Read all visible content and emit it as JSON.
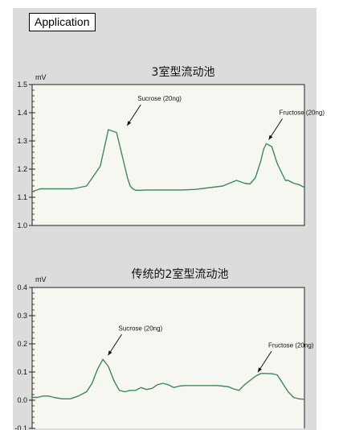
{
  "header": {
    "label": "Application"
  },
  "chart_data": [
    {
      "type": "line",
      "title": "3室型流动池",
      "ylabel": "mV",
      "ylim": [
        1.0,
        1.5
      ],
      "yticks": [
        "1.0",
        "1.1",
        "1.2",
        "1.3",
        "1.4",
        "1.5"
      ],
      "xlim": [
        0,
        100
      ],
      "grid": false,
      "series": [
        {
          "color": "#3a8a5a",
          "x": [
            0,
            3,
            8,
            15,
            20,
            25,
            28,
            31,
            33,
            35,
            36,
            37,
            38,
            40,
            42,
            44,
            47,
            50,
            55,
            60,
            70,
            75,
            78,
            80,
            82,
            84,
            85,
            86,
            88,
            90,
            93,
            94,
            95,
            96,
            98,
            100
          ],
          "y": [
            1.12,
            1.13,
            1.13,
            1.13,
            1.14,
            1.21,
            1.34,
            1.33,
            1.25,
            1.17,
            1.14,
            1.13,
            1.125,
            1.125,
            1.126,
            1.126,
            1.126,
            1.126,
            1.126,
            1.128,
            1.14,
            1.16,
            1.15,
            1.147,
            1.17,
            1.23,
            1.27,
            1.29,
            1.28,
            1.22,
            1.16,
            1.16,
            1.155,
            1.15,
            1.145,
            1.135
          ]
        }
      ],
      "annotations": [
        {
          "text": "Sucrose (20ng)",
          "x": 34,
          "y": 1.34
        },
        {
          "text": "Fructose (20ng)",
          "x": 86,
          "y": 1.29
        }
      ]
    },
    {
      "type": "line",
      "title": "传统的2室型流动池",
      "ylabel": "mV",
      "ylim": [
        -0.1,
        0.4
      ],
      "yticks": [
        "-0.1",
        "0.0",
        "0.1",
        "0.2",
        "0.3",
        "0.4"
      ],
      "xlim": [
        0,
        100
      ],
      "grid": false,
      "series": [
        {
          "color": "#3a8a5a",
          "x": [
            0,
            2,
            4,
            6,
            8,
            11,
            14,
            17,
            20,
            22,
            24,
            26,
            28,
            30,
            32,
            34,
            36,
            38,
            40,
            42,
            44,
            46,
            48,
            50,
            52,
            54,
            56,
            58,
            60,
            62,
            64,
            66,
            68,
            70,
            72,
            74,
            76,
            78,
            80,
            82,
            84,
            86,
            88,
            90,
            92,
            94,
            96,
            98,
            100
          ],
          "y": [
            0.01,
            0.01,
            0.015,
            0.015,
            0.01,
            0.005,
            0.005,
            0.015,
            0.03,
            0.06,
            0.11,
            0.145,
            0.12,
            0.07,
            0.035,
            0.03,
            0.035,
            0.035,
            0.045,
            0.038,
            0.042,
            0.055,
            0.06,
            0.055,
            0.045,
            0.05,
            0.052,
            0.052,
            0.052,
            0.052,
            0.052,
            0.052,
            0.052,
            0.05,
            0.048,
            0.04,
            0.035,
            0.055,
            0.07,
            0.085,
            0.095,
            0.095,
            0.094,
            0.09,
            0.06,
            0.03,
            0.01,
            0.005,
            0.003
          ]
        }
      ],
      "annotations": [
        {
          "text": "Sucrose (20ng)",
          "x": 27,
          "y": 0.145
        },
        {
          "text": "Fructose (20ng)",
          "x": 82,
          "y": 0.085
        }
      ]
    }
  ]
}
